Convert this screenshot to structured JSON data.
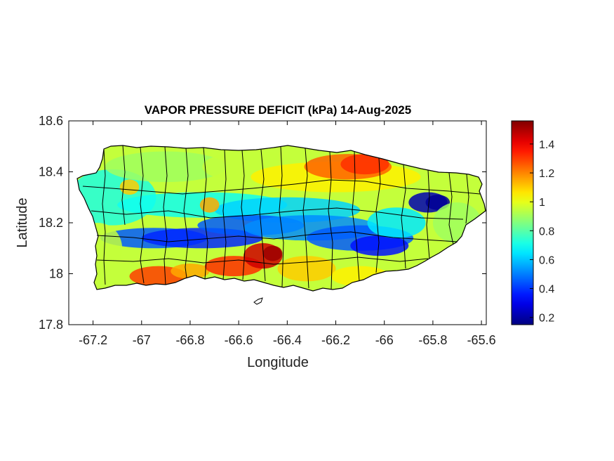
{
  "chart_data": {
    "type": "heatmap",
    "title": "VAPOR PRESSURE DEFICIT (kPa) 14-Aug-2025",
    "xlabel": "Longitude",
    "ylabel": "Latitude",
    "xlim": [
      -67.3,
      -65.58
    ],
    "ylim": [
      17.8,
      18.6
    ],
    "xticks": [
      -67.2,
      -67,
      -66.8,
      -66.6,
      -66.4,
      -66.2,
      -66,
      -65.8,
      -65.6
    ],
    "xtick_labels": [
      "-67.2",
      "-67",
      "-66.8",
      "-66.6",
      "-66.4",
      "-66.2",
      "-66",
      "-65.8",
      "-65.6"
    ],
    "yticks": [
      17.8,
      18,
      18.2,
      18.4,
      18.6
    ],
    "ytick_labels": [
      "17.8",
      "18",
      "18.2",
      "18.4",
      "18.6"
    ],
    "colorbar": {
      "colormap": "jet",
      "range": [
        0.15,
        1.56
      ],
      "ticks": [
        0.2,
        0.4,
        0.6,
        0.8,
        1,
        1.2,
        1.4
      ],
      "tick_labels": [
        "0.2",
        "0.4",
        "0.6",
        "0.8",
        "1",
        "1.2",
        "1.4"
      ]
    },
    "field_features": [
      {
        "description": "low VPD band along central mountains",
        "value": 0.3
      },
      {
        "description": "minimum near eastern highlands",
        "lon": -65.8,
        "lat": 18.28,
        "value": 0.18
      },
      {
        "description": "maximum on south coast",
        "lon": -66.5,
        "lat": 18.07,
        "value": 1.5
      },
      {
        "description": "high VPD north-east coast",
        "lon": -66.15,
        "lat": 18.42,
        "value": 1.3
      },
      {
        "description": "high VPD south-west coast",
        "lon": -66.93,
        "lat": 17.99,
        "value": 1.35
      }
    ],
    "grid": false
  }
}
